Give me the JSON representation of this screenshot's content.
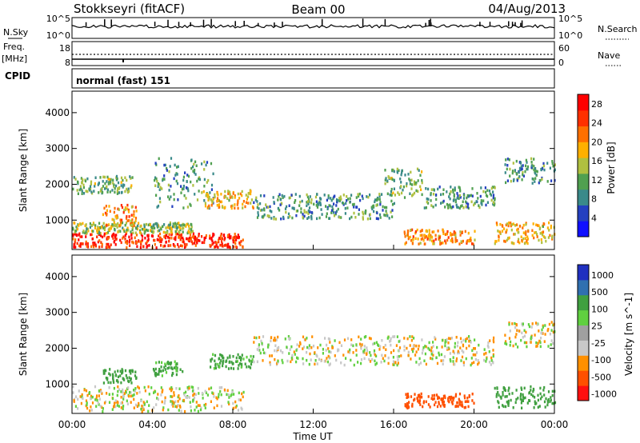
{
  "header": {
    "station": "Stokkseyri (fitACF)",
    "beam": "Beam 00",
    "date": "04/Aug/2013"
  },
  "strip_panels": {
    "nsky_label": "N.Sky",
    "nsky_ticks": [
      "10^5",
      "10^0"
    ],
    "nsearch_label": "N.Search",
    "nsearch_ticks": [
      "10^5",
      "10^0"
    ],
    "freq_label": "Freq.",
    "freq_unit": "[MHz]",
    "freq_ticks": [
      "18",
      "8"
    ],
    "nave_label": "Nave",
    "nave_ticks": [
      "60",
      "0"
    ],
    "cpid_label": "CPID",
    "cpid_value": "normal (fast) 151"
  },
  "chart_data": [
    {
      "type": "heatmap",
      "name": "power",
      "xlabel": "Time UT",
      "ylabel": "Slant Range [km]",
      "xlim": [
        0,
        24
      ],
      "ylim": [
        180,
        4600
      ],
      "x_ticks": [
        "00:00",
        "04:00",
        "08:00",
        "12:00",
        "16:00",
        "20:00",
        "00:00"
      ],
      "y_ticks": [
        "1000",
        "2000",
        "3000",
        "4000"
      ],
      "colorbar": {
        "label": "Power [dB]",
        "ticks": [
          "4",
          "8",
          "12",
          "16",
          "20",
          "24",
          "28"
        ],
        "range": [
          0,
          30
        ]
      },
      "bands": [
        {
          "range_km": [
            200,
            600
          ],
          "hours": [
            0,
            8.5
          ],
          "level_db": 26
        },
        {
          "range_km": [
            600,
            900
          ],
          "hours": [
            0,
            6
          ],
          "level_db": 14
        },
        {
          "range_km": [
            800,
            1400
          ],
          "hours": [
            1.5,
            3.2
          ],
          "level_db": 20
        },
        {
          "range_km": [
            1700,
            2200
          ],
          "hours": [
            0,
            3
          ],
          "level_db": 12
        },
        {
          "range_km": [
            1300,
            2700
          ],
          "hours": [
            4,
            7
          ],
          "level_db": 10
        },
        {
          "range_km": [
            1300,
            1800
          ],
          "hours": [
            6.5,
            9
          ],
          "level_db": 18
        },
        {
          "range_km": [
            1000,
            1700
          ],
          "hours": [
            9,
            16
          ],
          "level_db": 10
        },
        {
          "range_km": [
            1600,
            2400
          ],
          "hours": [
            15.5,
            17.5
          ],
          "level_db": 12
        },
        {
          "range_km": [
            300,
            700
          ],
          "hours": [
            16.5,
            20
          ],
          "level_db": 20
        },
        {
          "range_km": [
            1300,
            1900
          ],
          "hours": [
            17.5,
            21
          ],
          "level_db": 10
        },
        {
          "range_km": [
            2000,
            2700
          ],
          "hours": [
            21.5,
            24
          ],
          "level_db": 10
        },
        {
          "range_km": [
            300,
            900
          ],
          "hours": [
            21,
            24
          ],
          "level_db": 18
        }
      ]
    },
    {
      "type": "heatmap",
      "name": "velocity",
      "xlabel": "Time UT",
      "ylabel": "Slant Range [km]",
      "xlim": [
        0,
        24
      ],
      "ylim": [
        180,
        4600
      ],
      "x_ticks": [
        "00:00",
        "04:00",
        "08:00",
        "12:00",
        "16:00",
        "20:00",
        "00:00"
      ],
      "y_ticks": [
        "1000",
        "2000",
        "3000",
        "4000"
      ],
      "colorbar": {
        "label": "Velocity [m s^-1]",
        "ticks": [
          "1000",
          "500",
          "100",
          "25",
          "-25",
          "-100",
          "-500",
          "-1000"
        ]
      },
      "bands": [
        {
          "range_km": [
            200,
            900
          ],
          "hours": [
            0,
            8.5
          ],
          "velocity": 0
        },
        {
          "range_km": [
            1000,
            1400
          ],
          "hours": [
            1.5,
            3.2
          ],
          "velocity": 400
        },
        {
          "range_km": [
            1200,
            1600
          ],
          "hours": [
            4,
            5.5
          ],
          "velocity": 150
        },
        {
          "range_km": [
            1400,
            1800
          ],
          "hours": [
            6.8,
            9
          ],
          "velocity": 150
        },
        {
          "range_km": [
            1500,
            2300
          ],
          "hours": [
            9,
            21
          ],
          "velocity": 0
        },
        {
          "range_km": [
            300,
            700
          ],
          "hours": [
            16.5,
            20
          ],
          "velocity": -300
        },
        {
          "range_km": [
            300,
            900
          ],
          "hours": [
            21,
            24
          ],
          "velocity": 300
        },
        {
          "range_km": [
            2000,
            2700
          ],
          "hours": [
            21.5,
            24
          ],
          "velocity": 0
        }
      ]
    }
  ],
  "colors": {
    "power_scale": [
      "#1010ff",
      "#2440c0",
      "#3a8a8a",
      "#50a050",
      "#b0c040",
      "#ffb000",
      "#ff7000",
      "#ff3000",
      "#ff0000"
    ],
    "velocity_scale": [
      "#ff1010",
      "#ff5000",
      "#ff9000",
      "#c8c8c8",
      "#a0a0a0",
      "#60d040",
      "#40a040",
      "#3070b0",
      "#2030c0"
    ]
  }
}
